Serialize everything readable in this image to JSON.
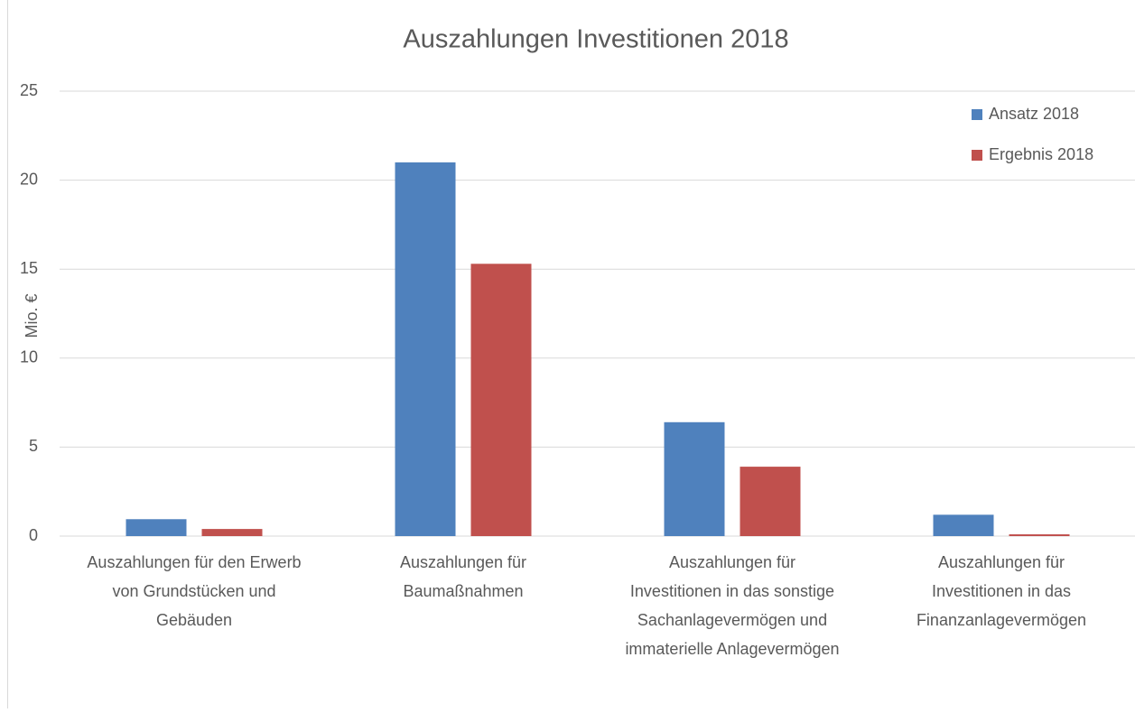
{
  "chart_data": {
    "type": "bar",
    "title": "Auszahlungen Investitionen 2018",
    "y_label": "Mio. €",
    "categories": [
      "Auszahlungen für den Erwerb\nvon Grundstücken und\nGebäuden",
      "Auszahlungen für\nBaumaßnahmen",
      "Auszahlungen für\nInvestitionen in das sonstige\nSachanlagevermögen und\nimmaterielle Anlagevermögen",
      "Auszahlungen für\nInvestitionen in das\nFinanzanlagevermögen"
    ],
    "series": [
      {
        "name": "Ansatz 2018",
        "color": "#4f81bd",
        "values": [
          0.95,
          21,
          6.4,
          1.2
        ]
      },
      {
        "name": "Ergebnis 2018",
        "color": "#c0504d",
        "values": [
          0.4,
          15.3,
          3.9,
          0.1
        ]
      }
    ],
    "ylim": [
      0,
      25
    ],
    "yticks": [
      0,
      5,
      10,
      15,
      20,
      25
    ],
    "grid": true,
    "legend": "top-right"
  }
}
